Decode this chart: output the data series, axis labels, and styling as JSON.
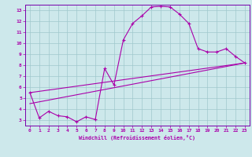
{
  "xlabel": "Windchill (Refroidissement éolien,°C)",
  "xlim": [
    -0.5,
    23.5
  ],
  "ylim": [
    2.5,
    13.5
  ],
  "yticks": [
    3,
    4,
    5,
    6,
    7,
    8,
    9,
    10,
    11,
    12,
    13
  ],
  "xticks": [
    0,
    1,
    2,
    3,
    4,
    5,
    6,
    7,
    8,
    9,
    10,
    11,
    12,
    13,
    14,
    15,
    16,
    17,
    18,
    19,
    20,
    21,
    22,
    23
  ],
  "background_color": "#cde8eb",
  "grid_color": "#a0c8cc",
  "line_color": "#aa00aa",
  "spine_color": "#7700aa",
  "series1_x": [
    0,
    1,
    2,
    3,
    4,
    5,
    6,
    7,
    8,
    9,
    10,
    11,
    12,
    13,
    14,
    15,
    16,
    17,
    18,
    19,
    20,
    21,
    22,
    23
  ],
  "series1_y": [
    5.5,
    3.2,
    3.8,
    3.4,
    3.3,
    2.85,
    3.3,
    3.05,
    7.7,
    6.2,
    10.3,
    11.8,
    12.5,
    13.3,
    13.35,
    13.3,
    12.65,
    11.8,
    9.5,
    9.2,
    9.2,
    9.5,
    8.8,
    8.2
  ],
  "series2_x": [
    0,
    23
  ],
  "series2_y": [
    5.5,
    8.2
  ],
  "series3_x": [
    0,
    23
  ],
  "series3_y": [
    4.5,
    8.2
  ]
}
